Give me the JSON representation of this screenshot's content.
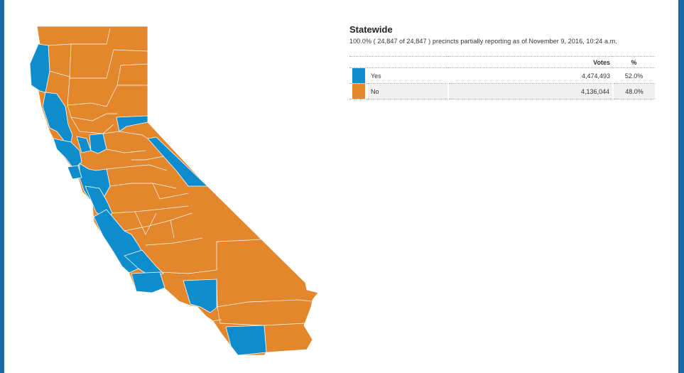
{
  "colors": {
    "yes": "#0e8dcc",
    "no": "#e4862b",
    "frame": "#1a6aa6"
  },
  "results": {
    "title": "Statewide",
    "subtitle": "100.0% ( 24,847 of 24,847 ) precincts partially reporting as of November 9, 2016, 10:24 a.m.",
    "header_votes": "Votes",
    "header_pct": "%",
    "rows": [
      {
        "label": "Yes",
        "votes": "4,474,493",
        "pct": "52.0%",
        "color": "#0e8dcc"
      },
      {
        "label": "No",
        "votes": "4,136,044",
        "pct": "48.0%",
        "color": "#e4862b"
      }
    ]
  },
  "map": {
    "yes_counties": "coastal / Bay Area / south coast",
    "no_counties": "interior"
  }
}
